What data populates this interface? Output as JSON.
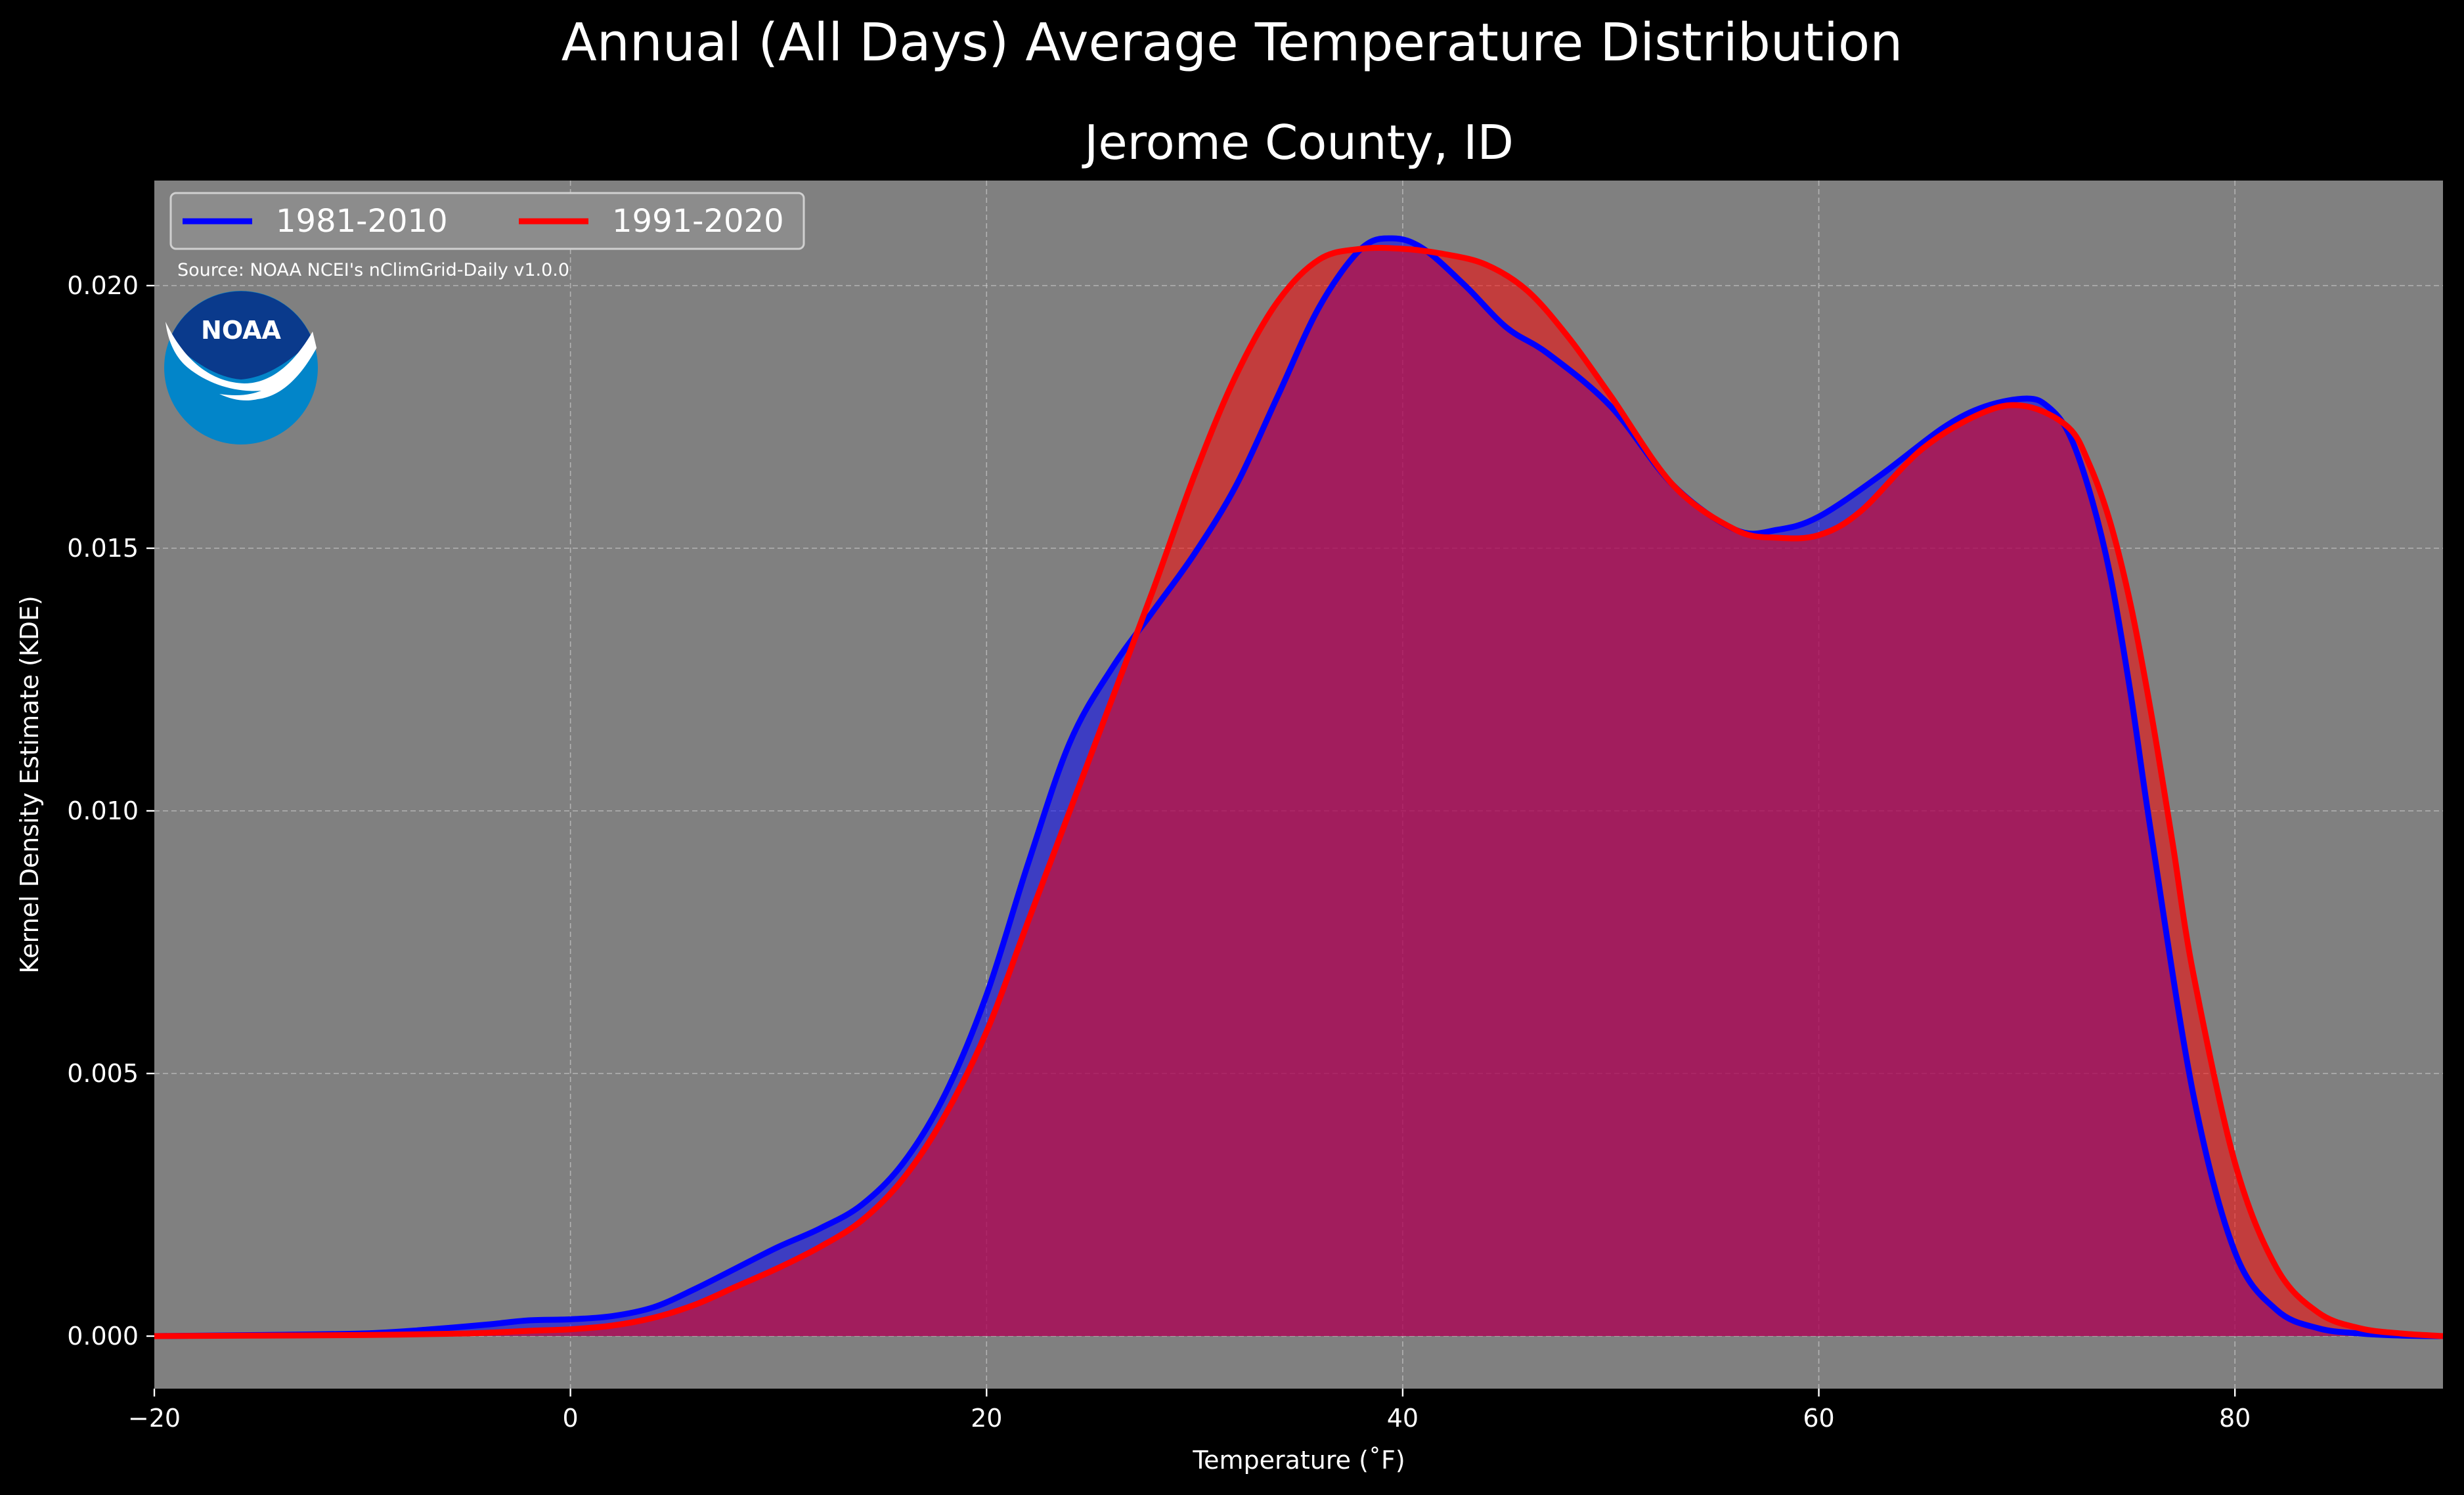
{
  "figure": {
    "suptitle": "Annual (All Days) Average Temperature Distribution",
    "source_note": "Source: NOAA NCEI's nClimGrid-Daily v1.0.0",
    "logo_text": "NOAA"
  },
  "colors": {
    "figure_background": "#000000",
    "plot_background": "#808080",
    "series_1981_2010": "#0000ff",
    "series_1991_2020": "#ff0000",
    "overlap_fill": "#9e1e5c",
    "logo_dark_blue": "#0a3a8c",
    "logo_light_blue": "#0285c9"
  },
  "chart_data": {
    "type": "area",
    "title": "Jerome County, ID",
    "xlabel": "Temperature (˚F)",
    "ylabel": "Kernel Density Estimate (KDE)",
    "xlim": [
      -20,
      90
    ],
    "ylim": [
      -0.001,
      0.022
    ],
    "xticks": [
      -20,
      0,
      20,
      40,
      60,
      80
    ],
    "xtick_labels": [
      "−20",
      "0",
      "20",
      "40",
      "60",
      "80"
    ],
    "yticks": [
      0.0,
      0.005,
      0.01,
      0.015,
      0.02
    ],
    "ytick_labels": [
      "0.000",
      "0.005",
      "0.010",
      "0.015",
      "0.020"
    ],
    "grid": true,
    "legend": {
      "placement": "top-left",
      "columns": 2
    },
    "series": [
      {
        "name": "1981-2010",
        "color": "#0000ff",
        "x": [
          -20,
          -15,
          -10,
          -7,
          -4,
          -2,
          0,
          2,
          4,
          6,
          8,
          10,
          12,
          14,
          16,
          18,
          20,
          22,
          24,
          26,
          28,
          30,
          32,
          34,
          36,
          38,
          39.5,
          41,
          43,
          45,
          47,
          50,
          53,
          56,
          58,
          60,
          63,
          66,
          68,
          70,
          71,
          72,
          73,
          74,
          75,
          76,
          78,
          80,
          82,
          84,
          86,
          88,
          90
        ],
        "y": [
          0.0,
          2e-05,
          5e-05,
          0.00012,
          0.00022,
          0.0003,
          0.00032,
          0.00038,
          0.00055,
          0.0009,
          0.0013,
          0.0017,
          0.00205,
          0.0025,
          0.0033,
          0.0046,
          0.0065,
          0.009,
          0.0113,
          0.0127,
          0.0138,
          0.0149,
          0.0162,
          0.0179,
          0.0196,
          0.0207,
          0.0209,
          0.0207,
          0.02,
          0.0192,
          0.0187,
          0.0177,
          0.0162,
          0.01535,
          0.01535,
          0.0156,
          0.0164,
          0.0173,
          0.0177,
          0.01785,
          0.0177,
          0.0172,
          0.0161,
          0.0145,
          0.0122,
          0.0095,
          0.0046,
          0.0016,
          0.0005,
          0.00015,
          5e-05,
          1e-05,
          0.0
        ]
      },
      {
        "name": "1991-2020",
        "color": "#ff0000",
        "x": [
          -20,
          -15,
          -10,
          -5,
          -2,
          0,
          2,
          4,
          6,
          8,
          10,
          12,
          14,
          16,
          18,
          20,
          22,
          24,
          26,
          28,
          30,
          32,
          34,
          36,
          38,
          40,
          42,
          44,
          46,
          48,
          50,
          53,
          56,
          58,
          60,
          62,
          65,
          68,
          70,
          72,
          73,
          74,
          75,
          76,
          77,
          78,
          80,
          82,
          84,
          86,
          88,
          90
        ],
        "y": [
          0.0,
          1e-05,
          2e-05,
          5e-05,
          0.0001,
          0.00013,
          0.0002,
          0.00035,
          0.0006,
          0.00095,
          0.0013,
          0.0017,
          0.0022,
          0.003,
          0.0042,
          0.0058,
          0.0079,
          0.01,
          0.0121,
          0.0142,
          0.0164,
          0.0183,
          0.0197,
          0.0205,
          0.0207,
          0.0207,
          0.0206,
          0.0204,
          0.0199,
          0.019,
          0.0179,
          0.0162,
          0.01535,
          0.0152,
          0.01525,
          0.0157,
          0.0169,
          0.0176,
          0.0177,
          0.0173,
          0.0166,
          0.0155,
          0.0139,
          0.0118,
          0.0094,
          0.0069,
          0.0033,
          0.0013,
          0.00045,
          0.00015,
          5e-05,
          0.0
        ]
      }
    ]
  }
}
